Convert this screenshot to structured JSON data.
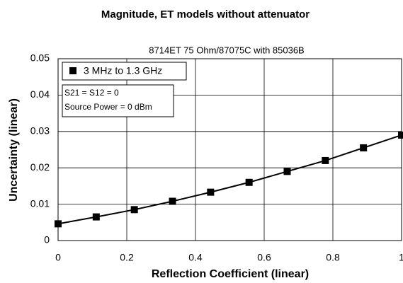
{
  "chart_data": {
    "type": "line",
    "title": "Magnitude, ET models without attenuator",
    "subtitle": "8714ET 75 Ohm/87075C with 85036B",
    "x_label": "Reflection Coefficient (linear)",
    "y_label": "Uncertainty (linear)",
    "x": [
      0,
      0.111,
      0.222,
      0.333,
      0.444,
      0.556,
      0.667,
      0.778,
      0.889,
      1
    ],
    "series": [
      {
        "name": "3 MHz to 1.3 GHz",
        "color": "#000000",
        "values": [
          0.0046,
          0.0065,
          0.0085,
          0.0108,
          0.0133,
          0.016,
          0.019,
          0.022,
          0.0255,
          0.029
        ]
      }
    ],
    "annotations": [
      "S21 = S12 = 0",
      "Source Power = 0 dBm"
    ],
    "xlim": [
      0,
      1
    ],
    "xticks": [
      0,
      0.2,
      0.4,
      0.6,
      0.8,
      1
    ],
    "ylim": [
      0,
      0.05
    ],
    "yticks": [
      0,
      0.01,
      0.02,
      0.03,
      0.04,
      0.05
    ],
    "grid": true,
    "legend": "upper left"
  }
}
